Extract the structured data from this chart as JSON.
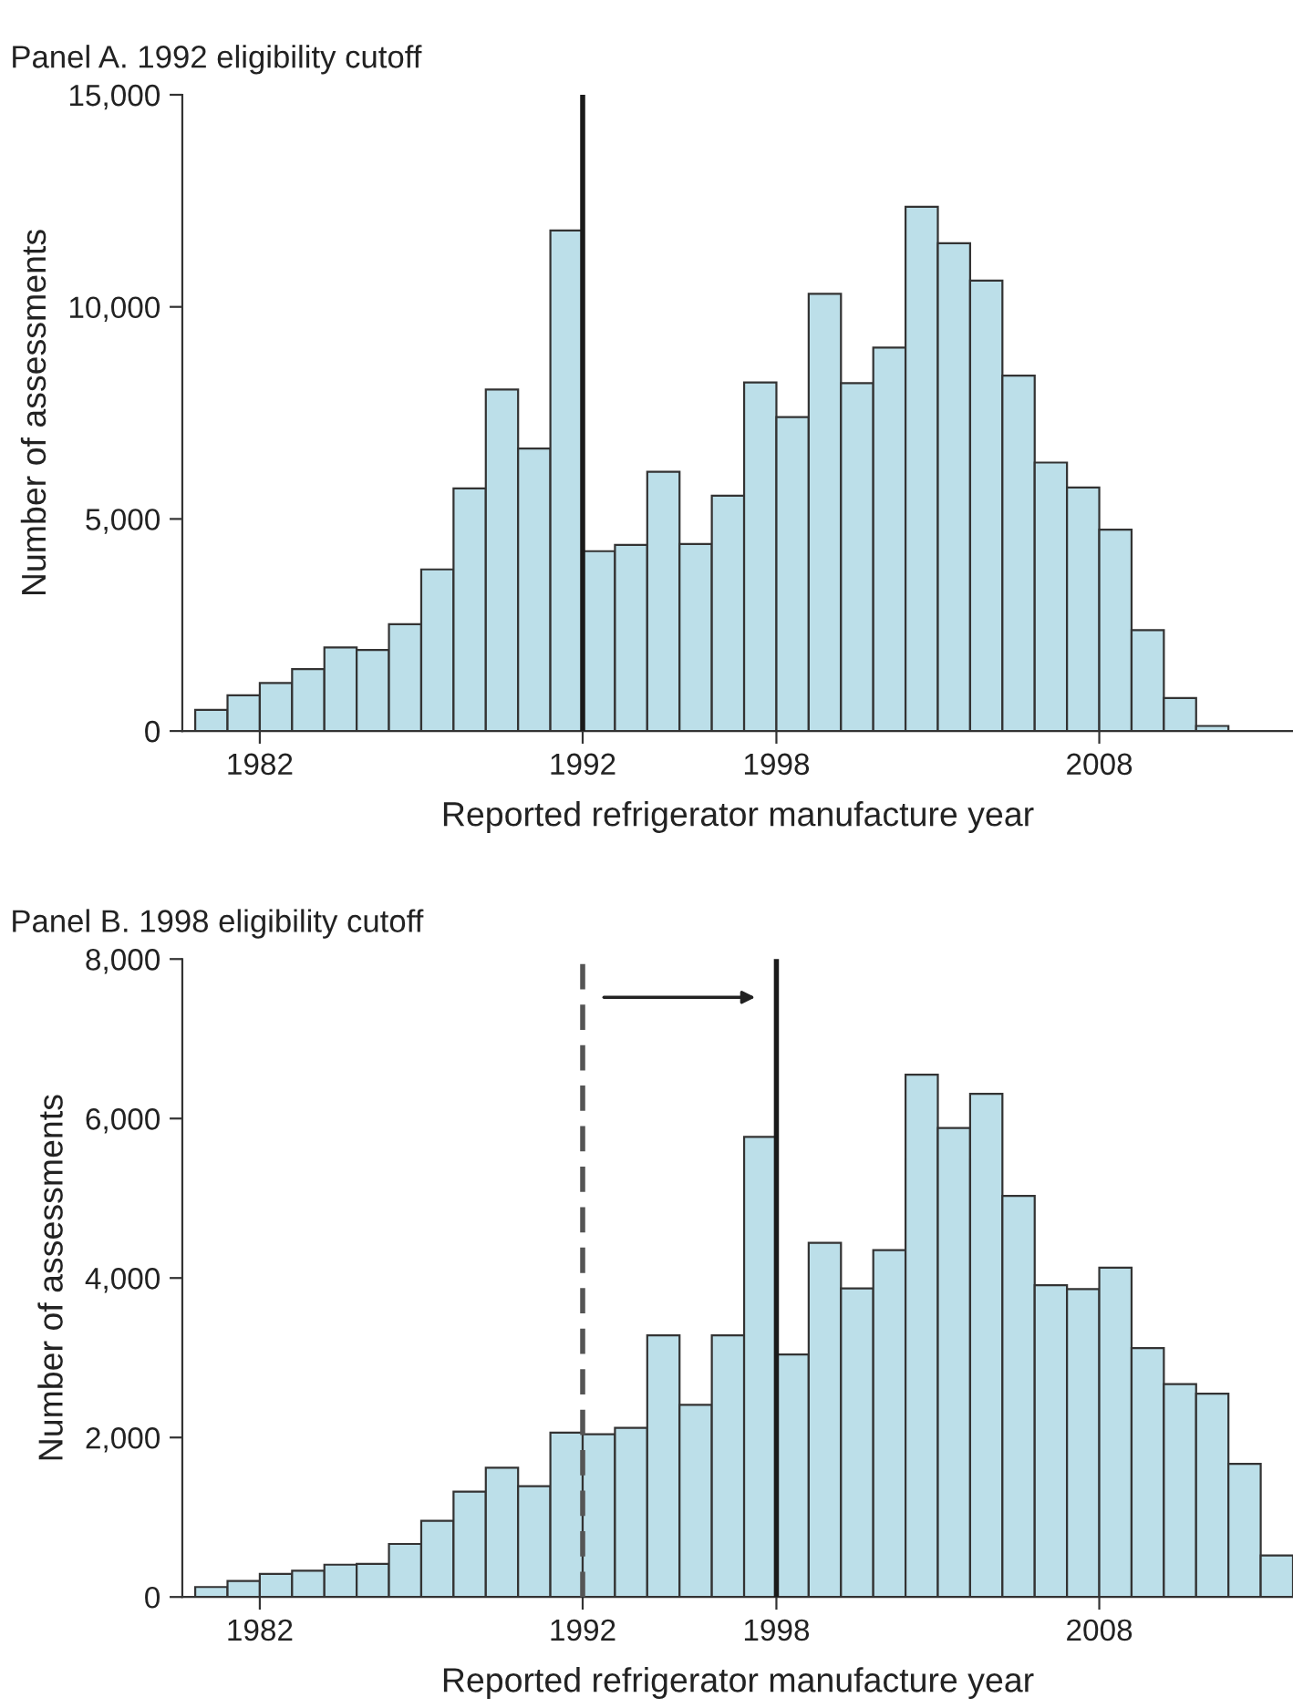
{
  "chart_data": [
    {
      "type": "histogram",
      "title": "Panel A. 1992 eligibility cutoff",
      "xlabel": "Reported refrigerator manufacture year",
      "ylabel": "Number of assessments",
      "color": "#bcdfe9",
      "bins": [
        1980,
        1981,
        1982,
        1983,
        1984,
        1985,
        1986,
        1987,
        1988,
        1989,
        1990,
        1991,
        1992,
        1993,
        1994,
        1995,
        1996,
        1997,
        1998,
        1999,
        2000,
        2001,
        2002,
        2003,
        2004,
        2005,
        2006,
        2007,
        2008,
        2009,
        2010,
        2011,
        2012
      ],
      "values": [
        500,
        840,
        1130,
        1460,
        1970,
        1910,
        2520,
        3810,
        5720,
        8050,
        6660,
        11800,
        4240,
        4390,
        6110,
        4410,
        5550,
        8220,
        7400,
        10310,
        8200,
        9040,
        12360,
        11500,
        10620,
        8380,
        6330,
        5740,
        4750,
        2380,
        780,
        120
      ],
      "xlim": [
        1979.6,
        2014
      ],
      "xticks": [
        1982,
        1992,
        1998,
        2008
      ],
      "ylim": [
        0,
        15000
      ],
      "yticks": [
        0,
        {
          "value": 5000,
          "label": "5,000"
        },
        {
          "value": 10000,
          "label": "10,000"
        },
        {
          "value": 15000,
          "label": "15,000"
        }
      ],
      "ref_lines": [
        {
          "axis": "x",
          "value": 1992,
          "color": "#1a1a1a",
          "line_style": "solid"
        }
      ],
      "grid": false,
      "legend": false
    },
    {
      "type": "histogram",
      "title": "Panel B. 1998 eligibility cutoff",
      "xlabel": "Reported refrigerator manufacture year",
      "ylabel": "Number of assessments",
      "color": "#bcdfe9",
      "bins": [
        1980,
        1981,
        1982,
        1983,
        1984,
        1985,
        1986,
        1987,
        1988,
        1989,
        1990,
        1991,
        1992,
        1993,
        1994,
        1995,
        1996,
        1997,
        1998,
        1999,
        2000,
        2001,
        2002,
        2003,
        2004,
        2005,
        2006,
        2007,
        2008,
        2009,
        2010,
        2011,
        2012,
        2013,
        2014
      ],
      "values": [
        125,
        200,
        290,
        330,
        405,
        415,
        665,
        955,
        1320,
        1620,
        1390,
        2060,
        2040,
        2120,
        3280,
        2410,
        3280,
        5770,
        3040,
        4440,
        3870,
        4350,
        6550,
        5880,
        6310,
        5030,
        3910,
        3860,
        4130,
        3120,
        2670,
        2550,
        1670,
        520
      ],
      "xlim": [
        1979.6,
        2014
      ],
      "xticks": [
        1982,
        1992,
        1998,
        2008
      ],
      "ylim": [
        0,
        8000
      ],
      "yticks": [
        0,
        {
          "value": 2000,
          "label": "2,000"
        },
        {
          "value": 4000,
          "label": "4,000"
        },
        {
          "value": 6000,
          "label": "6,000"
        },
        {
          "value": 8000,
          "label": "8,000"
        }
      ],
      "ref_lines": [
        {
          "axis": "x",
          "value": 1992,
          "color": "#555555",
          "line_style": "dashed"
        },
        {
          "axis": "x",
          "value": 1998,
          "color": "#1a1a1a",
          "line_style": "solid"
        }
      ],
      "grid": false,
      "legend": false
    }
  ]
}
